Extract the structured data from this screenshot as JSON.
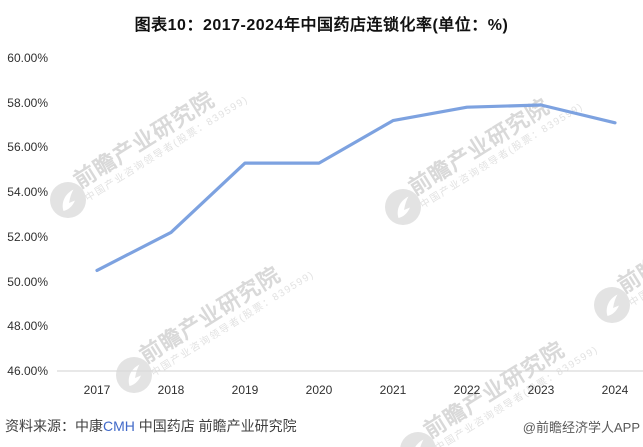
{
  "title": "图表10：2017-2024年中国药店连锁化率(单位：%)",
  "chart_data": {
    "type": "line",
    "title": "图表10：2017-2024年中国药店连锁化率(单位：%)",
    "x": [
      "2017",
      "2018",
      "2019",
      "2020",
      "2021",
      "2022",
      "2023",
      "2024"
    ],
    "series": [
      {
        "name": "中国药店连锁化率",
        "values": [
          50.5,
          52.2,
          55.3,
          55.3,
          57.2,
          57.8,
          57.9,
          57.1
        ]
      }
    ],
    "ylim": [
      46,
      60
    ],
    "yticks": [
      "60.00%",
      "58.00%",
      "56.00%",
      "54.00%",
      "52.00%",
      "50.00%",
      "48.00%",
      "46.00%"
    ],
    "grid": false,
    "legend": "none",
    "line_color": "#7da2e0",
    "axis_line_color": "#d9d9d9"
  },
  "watermark": {
    "brand": "前瞻产业研究院",
    "tagline": "中国产业咨询领导者(股票：839599)"
  },
  "footer": {
    "source_prefix": "资料来源：中康",
    "source_cmh": "CMH",
    "source_suffix": " 中国药店 前瞻产业研究院",
    "credit": "@前瞻经济学人APP"
  }
}
